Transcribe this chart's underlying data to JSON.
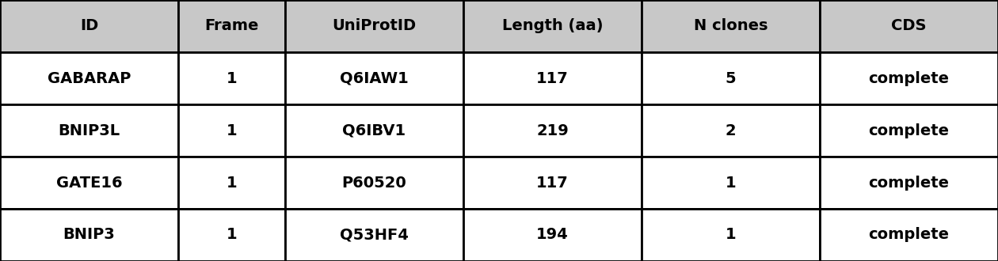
{
  "columns": [
    "ID",
    "Frame",
    "UniProtID",
    "Length (aa)",
    "N clones",
    "CDS"
  ],
  "rows": [
    [
      "GABARAP",
      "1",
      "Q6IAW1",
      "117",
      "5",
      "complete"
    ],
    [
      "BNIP3L",
      "1",
      "Q6IBV1",
      "219",
      "2",
      "complete"
    ],
    [
      "GATE16",
      "1",
      "P60520",
      "117",
      "1",
      "complete"
    ],
    [
      "BNIP3",
      "1",
      "Q53HF4",
      "194",
      "1",
      "complete"
    ]
  ],
  "header_bg": "#c8c8c8",
  "row_bg": "#ffffff",
  "border_color": "#000000",
  "text_color": "#000000",
  "header_fontsize": 14,
  "row_fontsize": 14,
  "fig_width": 12.6,
  "fig_height": 3.3,
  "col_widths": [
    1.0,
    0.6,
    1.0,
    1.0,
    1.0,
    1.0
  ]
}
